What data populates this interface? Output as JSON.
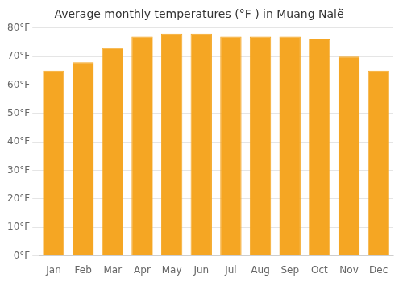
{
  "chart_data": {
    "type": "bar",
    "title": "Average monthly temperatures (°F ) in Muang Nalè̈",
    "categories": [
      "Jan",
      "Feb",
      "Mar",
      "Apr",
      "May",
      "Jun",
      "Jul",
      "Aug",
      "Sep",
      "Oct",
      "Nov",
      "Dec"
    ],
    "values": [
      65,
      68,
      73,
      77,
      78,
      78,
      77,
      77,
      77,
      76,
      70,
      65
    ],
    "color": "#F5A623",
    "ylim": [
      0,
      80
    ],
    "yticks": [
      {
        "value": 0,
        "label": "0°F"
      },
      {
        "value": 10,
        "label": "10°F"
      },
      {
        "value": 20,
        "label": "20°F"
      },
      {
        "value": 30,
        "label": "30°F"
      },
      {
        "value": 40,
        "label": "40°F"
      },
      {
        "value": 50,
        "label": "50°F"
      },
      {
        "value": 60,
        "label": "60°F"
      },
      {
        "value": 70,
        "label": "70°F"
      },
      {
        "value": 80,
        "label": "80°F"
      }
    ],
    "grid": true
  }
}
